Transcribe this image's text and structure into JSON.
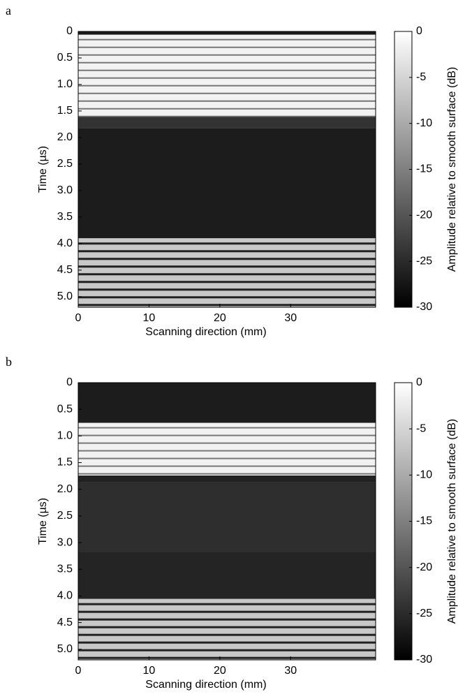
{
  "chart_data": [
    {
      "type": "heatmap",
      "panel_label": "a",
      "xlabel": "Scanning direction (mm)",
      "ylabel": "Time (µs)",
      "colorbar_label": "Amplitude relative to smooth surface (dB)",
      "colormap": "gray",
      "xlim": [
        0,
        42
      ],
      "xticks": [
        0,
        10,
        20,
        30
      ],
      "ylim": [
        0,
        5.2
      ],
      "yticks": [
        0,
        0.5,
        {
          "value": 1,
          "label": "1.0"
        },
        1.5,
        {
          "value": 2,
          "label": "2.0"
        },
        2.5,
        {
          "value": 3,
          "label": "3.0"
        },
        3.5,
        {
          "value": 4,
          "label": "4.0"
        },
        4.5,
        {
          "value": 5,
          "label": "5.0"
        }
      ],
      "clim": [
        -30,
        0
      ],
      "cticks": [
        0,
        -5,
        -10,
        -15,
        -20,
        -25,
        -30
      ]
    },
    {
      "type": "heatmap",
      "panel_label": "b",
      "xlabel": "Scanning direction (mm)",
      "ylabel": "Time (µs)",
      "colorbar_label": "Amplitude relative to smooth surface (dB)",
      "colormap": "gray",
      "xlim": [
        0,
        42
      ],
      "xticks": [
        0,
        10,
        20,
        30
      ],
      "ylim": [
        0,
        5.2
      ],
      "yticks": [
        0,
        0.5,
        {
          "value": 1,
          "label": "1.0"
        },
        1.5,
        {
          "value": 2,
          "label": "2.0"
        },
        2.5,
        {
          "value": 3,
          "label": "3.0"
        },
        3.5,
        {
          "value": 4,
          "label": "4.0"
        },
        4.5,
        {
          "value": 5,
          "label": "5.0"
        }
      ],
      "clim": [
        -30,
        0
      ],
      "cticks": [
        0,
        -5,
        -10,
        -15,
        -20,
        -25,
        -30
      ]
    }
  ]
}
